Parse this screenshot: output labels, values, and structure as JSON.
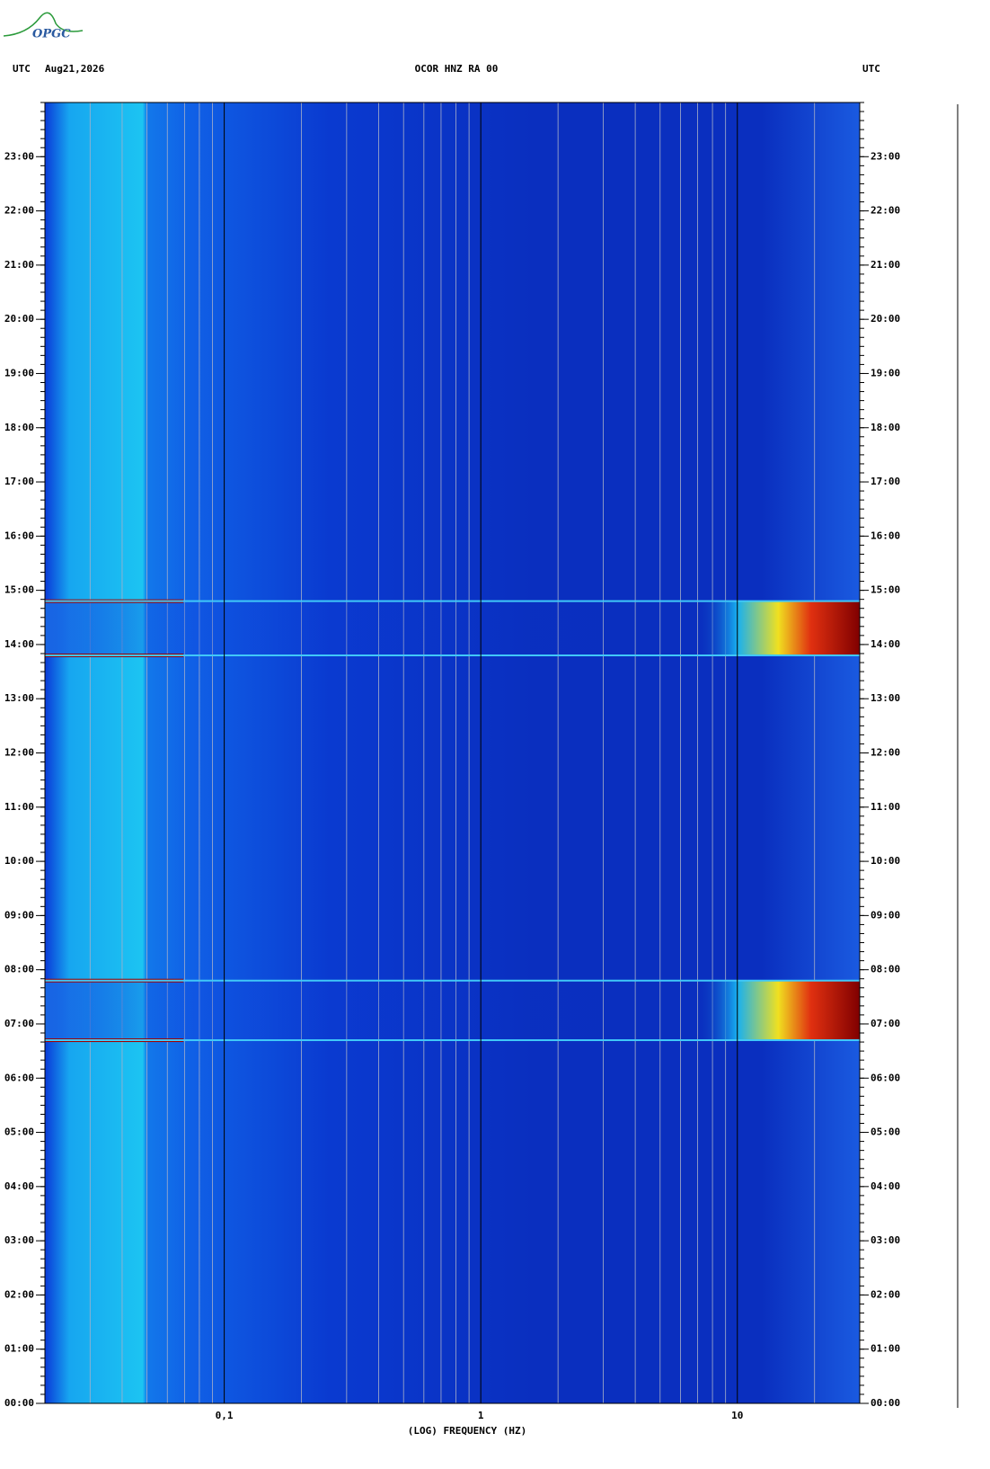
{
  "chart_data": {
    "type": "spectrogram",
    "logo": "OPGC",
    "left_header": "UTC",
    "date": "Aug21,2026",
    "title": "OCOR HNZ RA 00",
    "right_header": "UTC",
    "xlabel": "(LOG) FREQUENCY (HZ)",
    "xscale": "log",
    "xlim": [
      0.02,
      30
    ],
    "xticks": [
      {
        "value": 0.1,
        "label": "0,1"
      },
      1,
      10
    ],
    "ylim": [
      0,
      24
    ],
    "yticks": [
      {
        "value": 0,
        "label": "00:00"
      },
      {
        "value": 1,
        "label": "01:00"
      },
      {
        "value": 2,
        "label": "02:00"
      },
      {
        "value": 3,
        "label": "03:00"
      },
      {
        "value": 4,
        "label": "04:00"
      },
      {
        "value": 5,
        "label": "05:00"
      },
      {
        "value": 6,
        "label": "06:00"
      },
      {
        "value": 7,
        "label": "07:00"
      },
      {
        "value": 8,
        "label": "08:00"
      },
      {
        "value": 9,
        "label": "09:00"
      },
      {
        "value": 10,
        "label": "10:00"
      },
      {
        "value": 11,
        "label": "11:00"
      },
      {
        "value": 12,
        "label": "12:00"
      },
      {
        "value": 13,
        "label": "13:00"
      },
      {
        "value": 14,
        "label": "14:00"
      },
      {
        "value": 15,
        "label": "15:00"
      },
      {
        "value": 16,
        "label": "16:00"
      },
      {
        "value": 17,
        "label": "17:00"
      },
      {
        "value": 18,
        "label": "18:00"
      },
      {
        "value": 19,
        "label": "19:00"
      },
      {
        "value": 20,
        "label": "20:00"
      },
      {
        "value": 21,
        "label": "21:00"
      },
      {
        "value": 22,
        "label": "22:00"
      },
      {
        "value": 23,
        "label": "23:00"
      }
    ],
    "events": [
      {
        "start": 6.7,
        "end": 7.8
      },
      {
        "start": 13.8,
        "end": 14.8
      }
    ]
  }
}
